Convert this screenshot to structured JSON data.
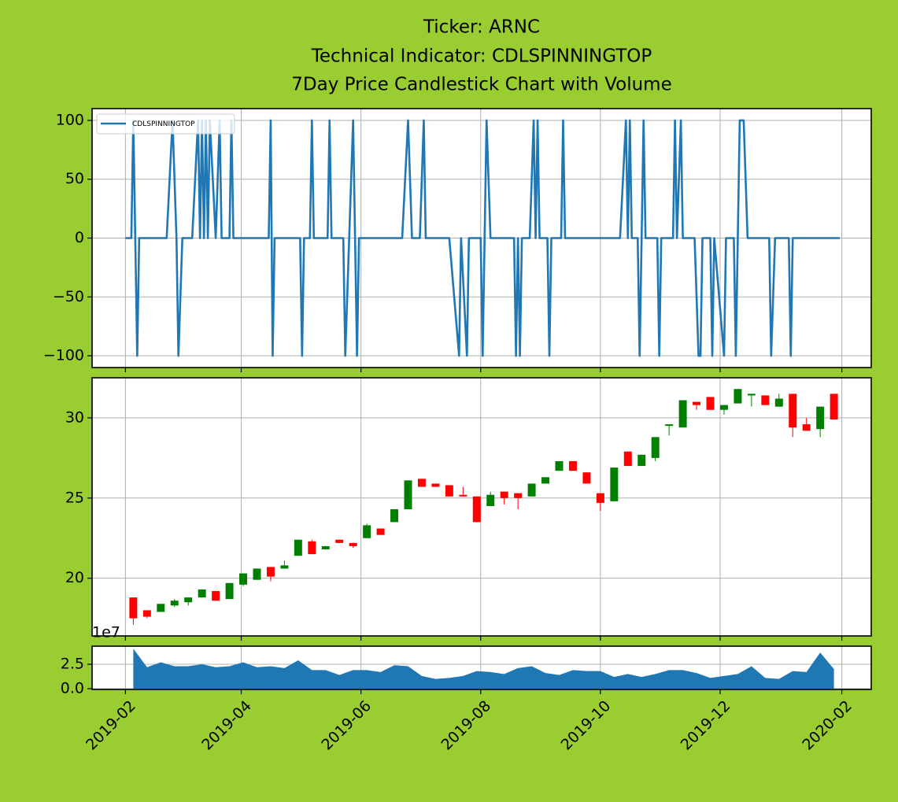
{
  "chart_data": [
    {
      "type": "line",
      "title": [
        "Ticker: ARNC",
        "Technical Indicator: CDLSPINNINGTOP",
        "7Day Price Candlestick Chart with Volume"
      ],
      "series": [
        {
          "name": "CDLSPINNINGTOP",
          "color": "#1f77b4",
          "x": [
            "2019-02-01",
            "2019-02-04",
            "2019-02-05",
            "2019-02-07",
            "2019-02-08",
            "2019-02-22",
            "2019-02-25",
            "2019-02-27",
            "2019-02-28",
            "2019-03-02",
            "2019-03-07",
            "2019-03-10",
            "2019-03-11",
            "2019-03-12",
            "2019-03-13",
            "2019-03-14",
            "2019-03-15",
            "2019-03-16",
            "2019-03-19",
            "2019-03-21",
            "2019-03-22",
            "2019-03-26",
            "2019-03-27",
            "2019-03-28",
            "2019-04-15",
            "2019-04-16",
            "2019-04-17",
            "2019-04-18",
            "2019-05-01",
            "2019-05-02",
            "2019-05-03",
            "2019-05-06",
            "2019-05-07",
            "2019-05-08",
            "2019-05-15",
            "2019-05-16",
            "2019-05-17",
            "2019-05-23",
            "2019-05-24",
            "2019-05-28",
            "2019-05-30",
            "2019-05-31",
            "2019-06-22",
            "2019-06-25",
            "2019-06-27",
            "2019-07-01",
            "2019-07-03",
            "2019-07-04",
            "2019-07-16",
            "2019-07-21",
            "2019-07-22",
            "2019-07-25",
            "2019-07-26",
            "2019-08-01",
            "2019-08-02",
            "2019-08-04",
            "2019-08-06",
            "2019-08-18",
            "2019-08-19",
            "2019-08-20",
            "2019-08-21",
            "2019-08-22",
            "2019-08-26",
            "2019-08-28",
            "2019-08-29",
            "2019-08-30",
            "2019-08-31",
            "2019-09-04",
            "2019-09-05",
            "2019-09-06",
            "2019-09-11",
            "2019-09-12",
            "2019-09-13",
            "2019-10-11",
            "2019-10-14",
            "2019-10-15",
            "2019-10-16",
            "2019-10-17",
            "2019-10-20",
            "2019-10-21",
            "2019-10-22",
            "2019-10-23",
            "2019-10-24",
            "2019-10-30",
            "2019-10-31",
            "2019-11-01",
            "2019-11-07",
            "2019-11-08",
            "2019-11-09",
            "2019-11-11",
            "2019-11-12",
            "2019-11-18",
            "2019-11-20",
            "2019-11-21",
            "2019-11-22",
            "2019-11-26",
            "2019-11-27",
            "2019-11-28",
            "2019-12-03",
            "2019-12-04",
            "2019-12-08",
            "2019-12-09",
            "2019-12-10",
            "2019-12-11",
            "2019-12-13",
            "2019-12-15",
            "2019-12-26",
            "2019-12-27",
            "2019-12-29",
            "2020-01-05",
            "2020-01-06",
            "2020-01-07",
            "2020-01-31"
          ],
          "values": [
            0,
            0,
            100,
            -100,
            0,
            0,
            100,
            0,
            -100,
            0,
            0,
            100,
            0,
            100,
            0,
            100,
            0,
            100,
            0,
            100,
            0,
            0,
            100,
            0,
            0,
            100,
            -100,
            0,
            0,
            -100,
            0,
            0,
            100,
            0,
            0,
            100,
            0,
            0,
            -100,
            100,
            -100,
            0,
            0,
            100,
            0,
            0,
            100,
            0,
            0,
            -100,
            0,
            -100,
            0,
            0,
            -100,
            100,
            0,
            0,
            -100,
            0,
            -100,
            0,
            0,
            100,
            0,
            100,
            0,
            0,
            -100,
            0,
            0,
            100,
            0,
            0,
            100,
            0,
            100,
            0,
            0,
            -100,
            0,
            100,
            0,
            0,
            -100,
            0,
            0,
            100,
            0,
            100,
            0,
            0,
            -100,
            -100,
            0,
            0,
            -100,
            0,
            -100,
            0,
            0,
            -100,
            0,
            100,
            100,
            0,
            0,
            -100,
            0,
            0,
            -100,
            0,
            0
          ]
        }
      ],
      "ylim": [
        -110,
        110
      ],
      "yticks": [
        100,
        50,
        0,
        {
          "value": -50,
          "label": "−50"
        },
        {
          "value": -100,
          "label": "−100"
        }
      ],
      "grid": true,
      "legend": "upper left"
    },
    {
      "type": "candlestick",
      "x": [
        "2019-02-05",
        "2019-02-12",
        "2019-02-19",
        "2019-02-26",
        "2019-03-05",
        "2019-03-12",
        "2019-03-19",
        "2019-03-26",
        "2019-04-02",
        "2019-04-09",
        "2019-04-16",
        "2019-04-23",
        "2019-04-30",
        "2019-05-07",
        "2019-05-14",
        "2019-05-21",
        "2019-05-28",
        "2019-06-04",
        "2019-06-11",
        "2019-06-18",
        "2019-06-25",
        "2019-07-02",
        "2019-07-09",
        "2019-07-16",
        "2019-07-23",
        "2019-07-30",
        "2019-08-06",
        "2019-08-13",
        "2019-08-20",
        "2019-08-27",
        "2019-09-03",
        "2019-09-10",
        "2019-09-17",
        "2019-09-24",
        "2019-10-01",
        "2019-10-08",
        "2019-10-15",
        "2019-10-22",
        "2019-10-29",
        "2019-11-05",
        "2019-11-12",
        "2019-11-19",
        "2019-11-26",
        "2019-12-03",
        "2019-12-10",
        "2019-12-17",
        "2019-12-24",
        "2019-12-31",
        "2020-01-07",
        "2020-01-14",
        "2020-01-21",
        "2020-01-28"
      ],
      "open": [
        18.8,
        18.0,
        17.9,
        18.3,
        18.5,
        18.8,
        19.2,
        18.7,
        19.6,
        19.9,
        20.7,
        20.6,
        21.4,
        22.3,
        21.8,
        22.4,
        22.2,
        22.5,
        23.1,
        23.5,
        24.3,
        26.2,
        25.9,
        25.8,
        25.2,
        25.1,
        24.5,
        25.4,
        25.3,
        25.1,
        25.9,
        26.7,
        27.3,
        26.6,
        25.3,
        24.8,
        27.9,
        27.0,
        27.5,
        29.5,
        29.4,
        31.0,
        31.3,
        30.5,
        30.9,
        31.4,
        31.4,
        30.7,
        31.5,
        29.6,
        29.3,
        31.5
      ],
      "high": [
        18.8,
        18.0,
        18.4,
        18.7,
        18.8,
        19.3,
        19.2,
        19.7,
        20.3,
        20.6,
        20.7,
        21.1,
        22.4,
        22.4,
        22.0,
        22.4,
        22.2,
        23.4,
        23.1,
        24.3,
        26.1,
        26.2,
        25.9,
        25.8,
        25.7,
        25.1,
        25.4,
        25.4,
        25.3,
        25.9,
        26.3,
        27.3,
        27.3,
        26.6,
        25.3,
        26.9,
        27.9,
        27.7,
        28.8,
        29.6,
        31.1,
        31.0,
        31.3,
        30.8,
        31.8,
        31.5,
        31.4,
        31.5,
        31.5,
        30.0,
        30.7,
        31.5
      ],
      "low": [
        17.1,
        17.5,
        17.9,
        18.2,
        18.3,
        18.8,
        18.6,
        18.7,
        19.5,
        19.9,
        19.8,
        20.6,
        21.4,
        21.5,
        21.8,
        22.2,
        21.9,
        22.5,
        22.7,
        23.5,
        24.3,
        25.7,
        25.7,
        25.1,
        25.1,
        23.5,
        24.5,
        24.6,
        24.3,
        25.1,
        25.9,
        26.7,
        26.7,
        25.9,
        24.2,
        24.8,
        27.0,
        27.0,
        27.3,
        28.9,
        29.4,
        30.5,
        30.5,
        30.2,
        30.9,
        30.7,
        30.8,
        30.7,
        28.8,
        29.2,
        28.8,
        29.9
      ],
      "close": [
        17.5,
        17.6,
        18.4,
        18.6,
        18.8,
        19.3,
        18.6,
        19.7,
        20.3,
        20.6,
        20.1,
        20.8,
        22.4,
        21.5,
        22.0,
        22.2,
        22.0,
        23.3,
        22.7,
        24.3,
        26.1,
        25.7,
        25.7,
        25.1,
        25.1,
        23.5,
        25.2,
        25.0,
        25.0,
        25.9,
        26.3,
        27.3,
        26.7,
        25.9,
        24.7,
        26.9,
        27.0,
        27.7,
        28.8,
        29.6,
        31.1,
        30.8,
        30.5,
        30.8,
        31.8,
        31.5,
        30.8,
        31.2,
        29.4,
        29.2,
        30.7,
        29.9
      ],
      "up_color": "green",
      "down_color": "red",
      "ylim": [
        16.4,
        32.5
      ],
      "yticks": [
        20,
        25,
        30
      ],
      "grid": true
    },
    {
      "type": "area",
      "color": "#1f77b4",
      "x": [
        "2019-02-05",
        "2019-02-12",
        "2019-02-19",
        "2019-02-26",
        "2019-03-05",
        "2019-03-12",
        "2019-03-19",
        "2019-03-26",
        "2019-04-02",
        "2019-04-09",
        "2019-04-16",
        "2019-04-23",
        "2019-04-30",
        "2019-05-07",
        "2019-05-14",
        "2019-05-21",
        "2019-05-28",
        "2019-06-04",
        "2019-06-11",
        "2019-06-18",
        "2019-06-25",
        "2019-07-02",
        "2019-07-09",
        "2019-07-16",
        "2019-07-23",
        "2019-07-30",
        "2019-08-06",
        "2019-08-13",
        "2019-08-20",
        "2019-08-27",
        "2019-09-03",
        "2019-09-10",
        "2019-09-17",
        "2019-09-24",
        "2019-10-01",
        "2019-10-08",
        "2019-10-15",
        "2019-10-22",
        "2019-10-29",
        "2019-11-05",
        "2019-11-12",
        "2019-11-19",
        "2019-11-26",
        "2019-12-03",
        "2019-12-10",
        "2019-12-17",
        "2019-12-24",
        "2019-12-31",
        "2020-01-07",
        "2020-01-14",
        "2020-01-21",
        "2020-01-28"
      ],
      "values": [
        4.1,
        2.2,
        2.7,
        2.3,
        2.3,
        2.5,
        2.2,
        2.3,
        2.7,
        2.2,
        2.3,
        2.1,
        2.9,
        1.9,
        1.9,
        1.4,
        1.9,
        1.9,
        1.7,
        2.4,
        2.3,
        1.3,
        1.0,
        1.1,
        1.3,
        1.8,
        1.7,
        1.5,
        2.1,
        2.3,
        1.6,
        1.4,
        1.9,
        1.8,
        1.8,
        1.2,
        1.5,
        1.2,
        1.5,
        1.9,
        1.9,
        1.6,
        1.1,
        1.3,
        1.5,
        2.3,
        1.1,
        1.0,
        1.8,
        1.7,
        3.7,
        2.0
      ],
      "offset_label": "1e7",
      "ylim": [
        -0.08,
        4.35
      ],
      "yticks": [
        {
          "value": 0,
          "label": "0.0"
        },
        {
          "value": 2.5,
          "label": "2.5"
        }
      ],
      "xlim": [
        "2019-01-15",
        "2020-02-16"
      ],
      "xticks": [
        {
          "value": "2019-02-01",
          "label": "2019-02"
        },
        {
          "value": "2019-04-01",
          "label": "2019-04"
        },
        {
          "value": "2019-06-01",
          "label": "2019-06"
        },
        {
          "value": "2019-08-01",
          "label": "2019-08"
        },
        {
          "value": "2019-10-01",
          "label": "2019-10"
        },
        {
          "value": "2019-12-01",
          "label": "2019-12"
        },
        {
          "value": "2020-02-01",
          "label": "2020-02"
        }
      ],
      "grid": true
    }
  ]
}
